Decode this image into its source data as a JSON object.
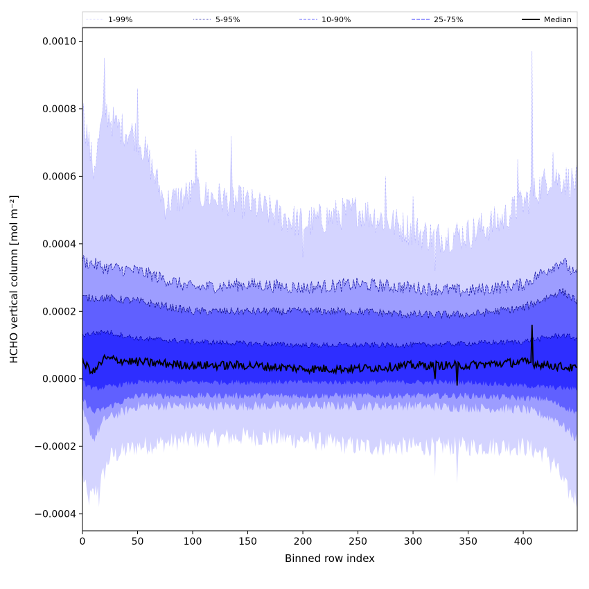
{
  "chart_data": {
    "type": "area",
    "xlabel": "Binned row index",
    "ylabel": "HCHO vertical column [mol m⁻²]",
    "xlim": [
      0,
      449
    ],
    "ylim": [
      -0.00045,
      0.00104
    ],
    "x_ticks": [
      "0",
      "50",
      "100",
      "150",
      "200",
      "250",
      "300",
      "350",
      "400"
    ],
    "y_ticks": [
      "−0.0004",
      "−0.0002",
      "0.0000",
      "0.0002",
      "0.0004",
      "0.0006",
      "0.0008",
      "0.0010"
    ],
    "grid": false,
    "legend_position": "top (above axes, single row)",
    "legend": [
      "1-99%",
      "5-95%",
      "10-90%",
      "25-75%",
      "Median"
    ],
    "bands": [
      {
        "name": "1-99%",
        "fill": "#d4d4ff",
        "lower_anchors": [
          [
            0,
            -0.00028
          ],
          [
            5,
            -0.00036
          ],
          [
            15,
            -0.00032
          ],
          [
            25,
            -0.00023
          ],
          [
            50,
            -0.0002
          ],
          [
            100,
            -0.00018
          ],
          [
            150,
            -0.00017
          ],
          [
            200,
            -0.00018
          ],
          [
            250,
            -0.0002
          ],
          [
            300,
            -0.0002
          ],
          [
            350,
            -0.0002
          ],
          [
            400,
            -0.0002
          ],
          [
            425,
            -0.00023
          ],
          [
            440,
            -0.00033
          ],
          [
            449,
            -0.00036
          ]
        ],
        "upper_anchors": [
          [
            0,
            0.0008
          ],
          [
            10,
            0.00062
          ],
          [
            20,
            0.0008
          ],
          [
            30,
            0.00075
          ],
          [
            50,
            0.00072
          ],
          [
            60,
            0.00065
          ],
          [
            75,
            0.00052
          ],
          [
            100,
            0.00055
          ],
          [
            150,
            0.00052
          ],
          [
            200,
            0.00046
          ],
          [
            250,
            0.0005
          ],
          [
            300,
            0.00044
          ],
          [
            320,
            0.00042
          ],
          [
            350,
            0.00043
          ],
          [
            380,
            0.00047
          ],
          [
            400,
            0.00052
          ],
          [
            425,
            0.0006
          ],
          [
            449,
            0.00058
          ]
        ]
      },
      {
        "name": "5-95%",
        "fill": "#9d9dff",
        "lower_anchors": [
          [
            0,
            -0.0001
          ],
          [
            10,
            -0.00018
          ],
          [
            20,
            -0.00012
          ],
          [
            50,
            -8e-05
          ],
          [
            100,
            -8e-05
          ],
          [
            200,
            -8e-05
          ],
          [
            300,
            -8e-05
          ],
          [
            400,
            -9e-05
          ],
          [
            430,
            -0.00012
          ],
          [
            449,
            -0.00018
          ]
        ],
        "upper_anchors": [
          [
            0,
            0.00035
          ],
          [
            20,
            0.00033
          ],
          [
            50,
            0.00032
          ],
          [
            100,
            0.00027
          ],
          [
            150,
            0.00028
          ],
          [
            200,
            0.00027
          ],
          [
            250,
            0.00028
          ],
          [
            300,
            0.00027
          ],
          [
            350,
            0.00026
          ],
          [
            400,
            0.00028
          ],
          [
            435,
            0.00035
          ],
          [
            449,
            0.0003
          ]
        ]
      },
      {
        "name": "10-90%",
        "fill": "#6060ff",
        "lower_anchors": [
          [
            0,
            -6e-05
          ],
          [
            10,
            -0.0001
          ],
          [
            50,
            -5e-05
          ],
          [
            150,
            -5e-05
          ],
          [
            250,
            -5e-05
          ],
          [
            350,
            -5e-05
          ],
          [
            420,
            -6e-05
          ],
          [
            449,
            -0.0001
          ]
        ],
        "upper_anchors": [
          [
            0,
            0.00024
          ],
          [
            20,
            0.00024
          ],
          [
            50,
            0.00023
          ],
          [
            100,
            0.0002
          ],
          [
            150,
            0.0002
          ],
          [
            200,
            0.0002
          ],
          [
            250,
            0.0002
          ],
          [
            300,
            0.00019
          ],
          [
            350,
            0.00019
          ],
          [
            400,
            0.00021
          ],
          [
            435,
            0.00026
          ],
          [
            449,
            0.00023
          ]
        ]
      },
      {
        "name": "25-75%",
        "fill": "#2e2eff",
        "lower_anchors": [
          [
            0,
            -1e-05
          ],
          [
            10,
            -3e-05
          ],
          [
            50,
            -1e-05
          ],
          [
            150,
            -1e-05
          ],
          [
            250,
            -1e-05
          ],
          [
            350,
            -1e-05
          ],
          [
            449,
            -3e-05
          ]
        ],
        "upper_anchors": [
          [
            0,
            0.00013
          ],
          [
            20,
            0.00014
          ],
          [
            50,
            0.00012
          ],
          [
            100,
            0.00011
          ],
          [
            200,
            0.0001
          ],
          [
            300,
            0.0001
          ],
          [
            400,
            0.00011
          ],
          [
            435,
            0.00013
          ],
          [
            449,
            0.00012
          ]
        ]
      }
    ],
    "median": {
      "name": "Median",
      "color": "#000000",
      "anchors": [
        [
          0,
          5e-05
        ],
        [
          10,
          2e-05
        ],
        [
          20,
          6e-05
        ],
        [
          50,
          5e-05
        ],
        [
          100,
          4e-05
        ],
        [
          150,
          4e-05
        ],
        [
          200,
          3e-05
        ],
        [
          250,
          3e-05
        ],
        [
          300,
          4e-05
        ],
        [
          350,
          4e-05
        ],
        [
          400,
          5e-05
        ],
        [
          449,
          3e-05
        ]
      ],
      "spikes": [
        [
          408,
          0.00016
        ],
        [
          340,
          -2e-05
        ],
        [
          320,
          0.0
        ]
      ]
    },
    "upper_spikes_1_99": [
      [
        20,
        0.00095
      ],
      [
        50,
        0.00086
      ],
      [
        103,
        0.00068
      ],
      [
        135,
        0.00072
      ],
      [
        200,
        0.00036
      ],
      [
        275,
        0.0006
      ],
      [
        300,
        0.00054
      ],
      [
        320,
        0.00032
      ],
      [
        395,
        0.00065
      ],
      [
        408,
        0.00097
      ],
      [
        427,
        0.00067
      ]
    ],
    "lower_spikes_1_99": [
      [
        15,
        -0.00038
      ],
      [
        320,
        -0.00029
      ],
      [
        340,
        -0.00031
      ],
      [
        425,
        -0.00028
      ]
    ]
  }
}
